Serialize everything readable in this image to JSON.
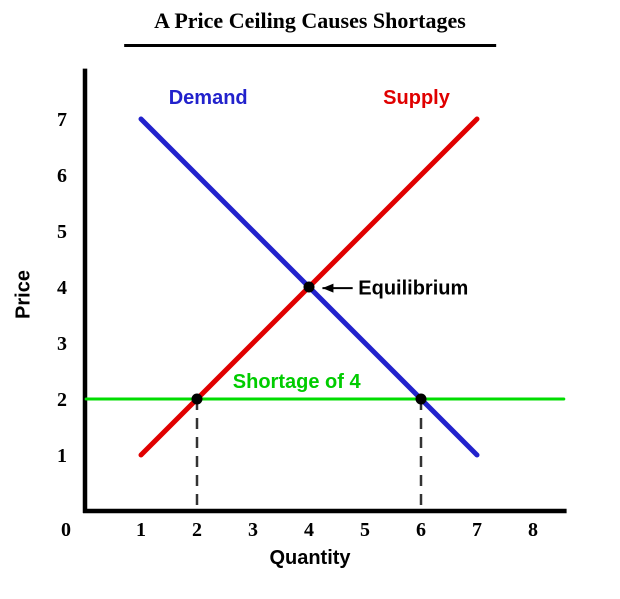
{
  "page": {
    "title": "A Price Ceiling Causes Shortages"
  },
  "chart_data": {
    "type": "line",
    "title": "A Price Ceiling Causes Shortages",
    "xlabel": "Quantity",
    "ylabel": "Price",
    "xlim": [
      0,
      8.6
    ],
    "ylim": [
      0,
      7.9
    ],
    "x_ticks": [
      "1",
      "2",
      "3",
      "4",
      "5",
      "6",
      "7",
      "8"
    ],
    "y_ticks": [
      "1",
      "2",
      "3",
      "4",
      "5",
      "6",
      "7"
    ],
    "origin_tick": "0",
    "axis_color": "#000000",
    "series": [
      {
        "name": "Demand",
        "color": "#2222cc",
        "width": 5,
        "points": [
          [
            1,
            7
          ],
          [
            7,
            1
          ]
        ],
        "label": {
          "text": "Demand",
          "x": 2.2,
          "y": 7.27,
          "color": "#2222cc"
        }
      },
      {
        "name": "Supply",
        "color": "#e00000",
        "width": 5,
        "points": [
          [
            1,
            1
          ],
          [
            7,
            7
          ]
        ],
        "label": {
          "text": "Supply",
          "x": 5.92,
          "y": 7.27,
          "color": "#e00000"
        }
      },
      {
        "name": "Price ceiling",
        "color": "#00dd00",
        "width": 3,
        "points": [
          [
            0.02,
            2
          ],
          [
            8.55,
            2
          ]
        ],
        "label": {
          "text": "Shortage of 4",
          "x": 3.78,
          "y": 2.2,
          "color": "#00cc00"
        }
      }
    ],
    "markers": [
      {
        "x": 2,
        "y": 2
      },
      {
        "x": 4,
        "y": 4
      },
      {
        "x": 6,
        "y": 2
      }
    ],
    "dashed_guides": [
      {
        "x": 2,
        "from_y": 2,
        "to_y": 0.07
      },
      {
        "x": 6,
        "from_y": 2,
        "to_y": 0.07
      }
    ],
    "annotations": [
      {
        "text": "Equilibrium",
        "x": 4.88,
        "y": 3.87,
        "color": "#000000",
        "arrow": {
          "from": [
            4.78,
            3.98
          ],
          "to": [
            4.24,
            3.98
          ]
        }
      }
    ]
  }
}
